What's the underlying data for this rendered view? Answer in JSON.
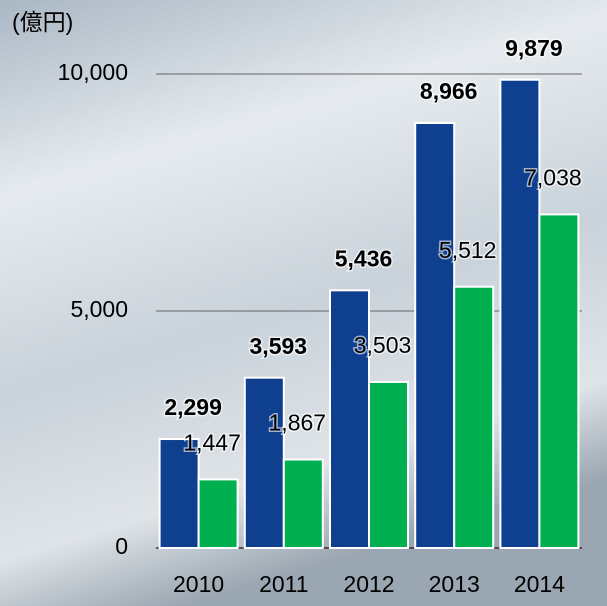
{
  "chart_data": {
    "type": "bar",
    "y_label": "(億円)",
    "categories": [
      "2010",
      "2011",
      "2012",
      "2013",
      "2014"
    ],
    "series": [
      {
        "color": "#0f3f8f",
        "values": [
          2299,
          3593,
          5436,
          8966,
          9879
        ],
        "value_labels": [
          "2,299",
          "3,593",
          "5,436",
          "8,966",
          "9,879"
        ],
        "bold_labels": true
      },
      {
        "color": "#00b050",
        "values": [
          1447,
          1867,
          3503,
          5512,
          7038
        ],
        "value_labels": [
          "1,447",
          "1,867",
          "3,503",
          "5,512",
          "7,038"
        ],
        "bold_labels": false
      }
    ],
    "ylim": [
      0,
      10000
    ],
    "yticks": [
      {
        "value": 0,
        "label": "0"
      },
      {
        "value": 5000,
        "label": "5,000"
      },
      {
        "value": 10000,
        "label": "10,000"
      }
    ],
    "grid": true
  }
}
